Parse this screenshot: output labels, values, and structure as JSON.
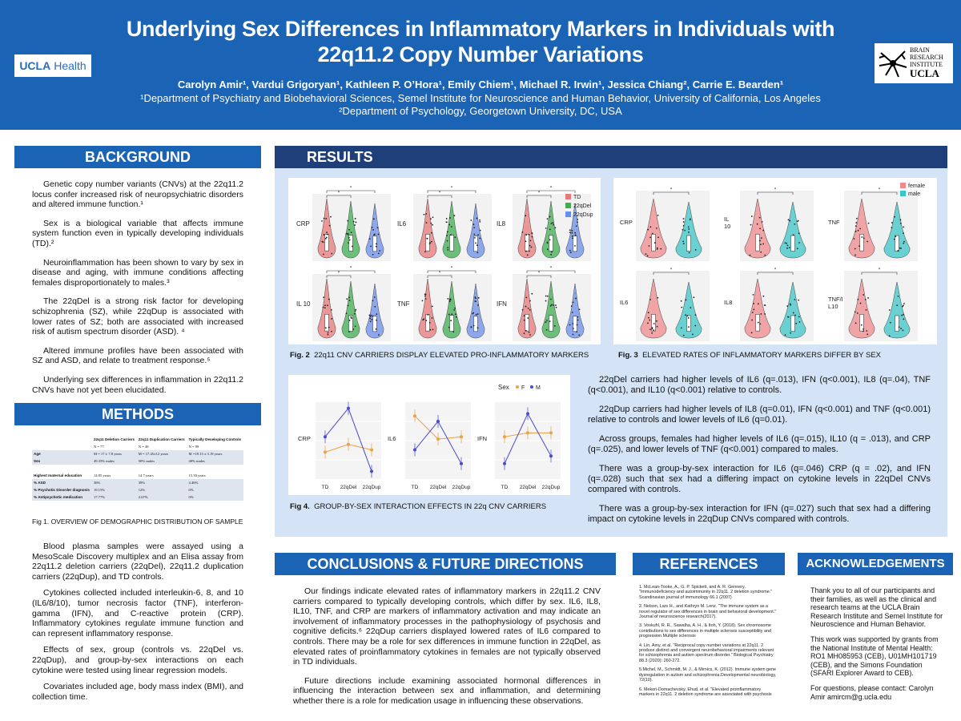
{
  "header": {
    "title": "Underlying Sex Differences in Inflammatory Markers in Individuals with 22q11.2 Copy Number Variations",
    "authors": "Carolyn Amir¹, Vardui Grigoryan¹, Kathleen P. O’Hora¹, Emily Chiem¹, Michael R. Irwin¹, Jessica Chiang², Carrie E. Bearden¹",
    "affiliation1": "¹Department of Psychiatry and Biobehavioral Sciences, Semel Institute for Neuroscience and Human Behavior, University of California, Los Angeles",
    "affiliation2": "²Department of Psychology, Georgetown University, DC, USA",
    "logo_left_bold": "UCLA",
    "logo_left_rest": "Health",
    "logo_right_lines": [
      "BRAIN",
      "RESEARCH",
      "INSTITUTE"
    ],
    "logo_right_ucla": "UCLA"
  },
  "background": {
    "heading": "BACKGROUND",
    "paragraphs": [
      "Genetic copy number variants (CNVs) at the 22q11.2 locus confer increased risk of neuropsychiatric disorders and altered immune function.¹",
      "Sex is a biological variable that affects immune system function even in typically developing individuals (TD).²",
      "Neuroinflammation has been shown to vary by sex in disease and aging, with immune conditions affecting females disproportionately to males.³",
      "The 22qDel is a strong risk factor for developing schizophrenia (SZ), while 22qDup is associated with lower rates of SZ; both are associated with increased risk of autism spectrum disorder (ASD). ⁴",
      "Altered immune profiles have been associated with SZ and ASD, and relate to treatment response.⁵",
      "Underlying sex differences in inflammation in 22q11.2 CNVs have not yet been elucidated."
    ]
  },
  "methods": {
    "heading": "METHODS",
    "table": {
      "headers": [
        "",
        "22q11 Deletion Carriers",
        "22q11 Duplication Carriers",
        "Typically Developing Controls"
      ],
      "rows": [
        [
          "",
          "N = 77",
          "N = 48",
          "N = 99"
        ],
        [
          "Age",
          "M = 17 ± 7.8 years",
          "M = 17.45±12 years",
          "M =18.13 ± 3.19 years"
        ],
        [
          "Sex",
          "49.35% males",
          "50% males",
          "40% males"
        ],
        [
          "",
          "",
          "",
          ""
        ],
        [
          "Highest maternal education",
          "14.85 years",
          "14.7 years",
          "15.39 years"
        ],
        [
          "% ASD",
          "36%",
          "39%",
          "4.46%"
        ],
        [
          "% Psychotic Disorder diagnosis",
          "19.15%",
          "12%",
          "0%"
        ],
        [
          "% Antipsychotic medication",
          "17.77%",
          "2.67%",
          "0%"
        ]
      ]
    },
    "fig1_caption": "Fig 1. OVERVIEW OF DEMOGRAPHIC DISTRIBUTION OF SAMPLE",
    "paragraphs": [
      "Blood plasma samples were assayed using a MesoScale Discovery multiplex and an Elisa assay from 22q11.2 deletion carriers (22qDel), 22q11.2 duplication carriers (22qDup), and TD controls.",
      "Cytokines collected included interleukin-6, 8, and 10 (IL6/8/10), tumor necrosis factor (TNF), interferon-gamma (IFN), and C-reactive protein (CRP). Inflammatory cytokines regulate immune function and can represent inflammatory response.",
      "Effects of sex, group (controls vs. 22qDel vs. 22qDup), and group-by-sex interactions on each cytokine were tested using linear regression models.",
      "Covariates included age, body mass index (BMI), and collection time."
    ]
  },
  "results": {
    "heading": "RESULTS",
    "fig2": {
      "caption_num": "Fig. 2",
      "caption_text": "22q11 CNV CARRIERS DISPLAY ELEVATED PRO-INFLAMMATORY MARKERS",
      "legend": [
        "TD",
        "22qDel",
        "22qDup"
      ],
      "colors": [
        "#e8787a",
        "#3fae4f",
        "#6a8ee8"
      ],
      "panels": [
        "CRP",
        "IL6",
        "IL8",
        "IL 10",
        "TNF",
        "IFN"
      ]
    },
    "fig3": {
      "caption_num": "Fig. 3",
      "caption_text": "ELEVATED RATES OF INFLAMMATORY MARKERS DIFFER BY SEX",
      "legend": [
        "female",
        "male"
      ],
      "colors": [
        "#f08a8c",
        "#3cc4c6"
      ],
      "panels": [
        "CRP",
        "IL 10",
        "TNF",
        "IL6",
        "IL8",
        "TNF/I L10"
      ]
    },
    "fig4": {
      "caption_num": "Fig 4.",
      "caption_text": "GROUP-BY-SEX INTERACTION EFFECTS IN 22q CNV CARRIERS",
      "legend_title": "Sex",
      "legend": [
        "F",
        "M"
      ],
      "colors": [
        "#f0a040",
        "#4a4ad0"
      ],
      "x_ticks": [
        "TD",
        "22qDel",
        "22qDup"
      ],
      "panels": [
        "CRP",
        "IL6",
        "IFN"
      ]
    },
    "paragraphs": [
      "22qDel carriers had higher levels of IL6 (q=.013), IFN (q<0.001), IL8 (q=.04), TNF (q<0.001), and IL10 (q<0.001) relative to controls.",
      "22qDup carriers had higher levels of IL8 (q=0.01), IFN (q<0.001) and TNF (q<0.001) relative to controls and lower levels of IL6 (q=0.01).",
      "Across groups, females had higher levels of IL6 (q=.015), IL10 (q = .013), and CRP (q=.025), and lower levels of TNF (q<0.001) compared to males.",
      "There was a group-by-sex interaction for IL6 (q=.046) CRP (q = .02), and IFN (q=.028) such that sex had a differing impact on cytokine levels in 22qDel CNVs compared with controls.",
      "There was a group-by-sex interaction for IFN (q=.027) such that sex had a differing impact on cytokine levels in 22qDup CNVs compared with controls."
    ]
  },
  "conclusions": {
    "heading": "CONCLUSIONS & FUTURE DIRECTIONS",
    "paragraphs": [
      "Our findings indicate elevated rates of inflammatory markers in 22q11.2 CNV carriers compared to typically developing controls, which differ by sex. IL6, IL8, IL10, TNF, and CRP are markers of inflammatory activation and may indicate an involvement of inflammatory processes in the pathophysiology of psychosis and cognitive deficits.⁶ 22qDup carriers displayed lowered rates of IL6 compared to controls. There may be a role for sex differences in immune function in 22qDel, as elevated rates of proinflammatory cytokines in females are not typically observed in TD individuals.",
      "Future directions include examining associated hormonal differences in influencing the interaction between sex and inflammation, and determining whether there is a role for medication usage in influencing these observations."
    ]
  },
  "references": {
    "heading": "REFERENCES",
    "items": [
      "1. McLean-Tooke, A., G. P. Spickett, and A. R. Gennery. \"Immunodeficiency and autoimmunity in 22q11. 2 deletion syndrome.\" Scandinavian journal of immunology 66.1 (2007)",
      "2. Nelson, Lars H., and Kathryn M. Lenz. \"The immune system as a novel regulator of sex differences in brain and behavioral development.\" Journal of neuroscience research(2017).",
      "3. Voskuhl, R. R., Sawalha, A. H., & Itoh, Y. (2018). Sex chromosome contributions to sex differences in multiple sclerosis susceptibility and progression.Multiple sclerosis",
      "4. Lin, Amy, et al. \"Reciprocal copy number variations at 22q11. 2 produce distinct and convergent neurobehavioral impairments relevant for schizophrenia and autism spectrum disorder.\" Biological Psychiatry 88.3 (2020): 260-272.",
      "5.Michel, M., Schmidt, M. J., & Mirnics, K. (2012). Immune system gene dysregulation in autism and schizophrenia.Developmental neurobiology, 72(10).",
      "6. Mekori-Domachevsky, Ehud, et al. \"Elevated proinflammatory markers in 22q11. 2 deletion syndrome are associated with psychosis and cognitive deficits.\" The Journal of Clinical Psychiatry"
    ]
  },
  "acknowledgements": {
    "heading": "ACKNOWLEDGEMENTS",
    "paragraphs": [
      "Thank you to all of our participants and their families, as well as the clinical and research teams at the UCLA Brain Research Institute and Semel Institute for Neuroscience and Human Behavior.",
      "This work was supported by grants from the National Institute of Mental Health: RO1 MH085953 (CEB), U01MH101719 (CEB), and the Simons Foundation (SFARI Explorer Award to CEB).",
      "For questions, please contact: Carolyn Amir amircm@g.ucla.edu"
    ]
  },
  "chart_data": [
    {
      "type": "line",
      "title": "CRP",
      "xlabel": "",
      "ylabel": "CRP",
      "categories": [
        "TD",
        "22qDel",
        "22qDup"
      ],
      "series": [
        {
          "name": "F",
          "values": [
            0.35,
            0.45,
            0.38
          ]
        },
        {
          "name": "M",
          "values": [
            0.55,
            0.92,
            0.1
          ]
        }
      ]
    },
    {
      "type": "line",
      "title": "IL6",
      "xlabel": "",
      "ylabel": "IL6",
      "categories": [
        "TD",
        "22qDel",
        "22qDup"
      ],
      "series": [
        {
          "name": "F",
          "values": [
            0.82,
            0.52,
            0.55
          ]
        },
        {
          "name": "M",
          "values": [
            0.38,
            0.75,
            0.2
          ]
        }
      ]
    },
    {
      "type": "line",
      "title": "IFN",
      "xlabel": "",
      "ylabel": "IFN",
      "categories": [
        "TD",
        "22qDel",
        "22qDup"
      ],
      "series": [
        {
          "name": "F",
          "values": [
            0.55,
            0.6,
            0.6
          ]
        },
        {
          "name": "M",
          "values": [
            0.2,
            0.85,
            0.3
          ]
        }
      ]
    }
  ]
}
